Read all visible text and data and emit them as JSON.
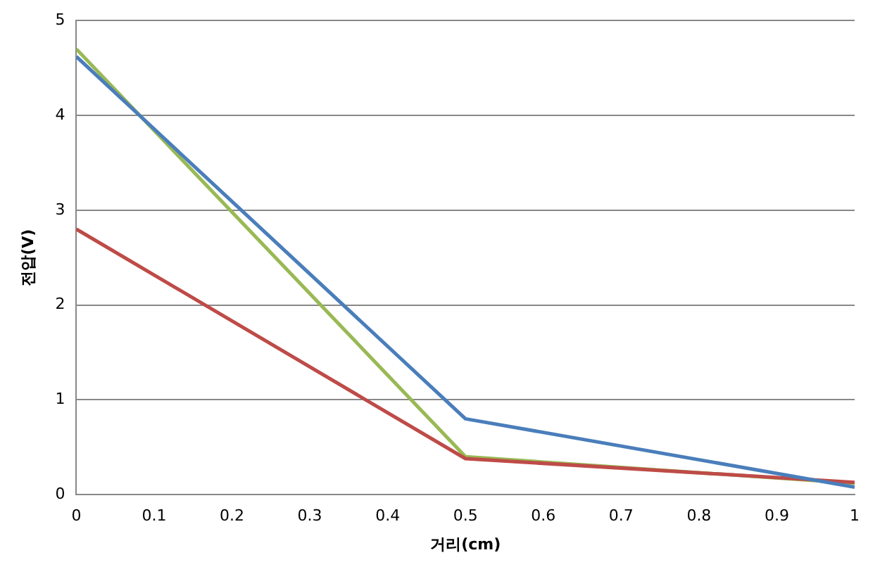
{
  "chart_data": {
    "type": "line",
    "xlabel": "거리(cm)",
    "ylabel": "전압(V)",
    "x": [
      0,
      0.5,
      1
    ],
    "series": [
      {
        "color": "#4a7ebb",
        "values": [
          4.62,
          0.8,
          0.08
        ]
      },
      {
        "color": "#be4b48",
        "values": [
          2.8,
          0.38,
          0.13
        ]
      },
      {
        "color": "#98b954",
        "values": [
          4.7,
          0.4,
          0.12
        ]
      }
    ],
    "xlim": [
      0,
      1
    ],
    "xticks": [
      0,
      0.1,
      0.2,
      0.3,
      0.4,
      0.5,
      0.6,
      0.7,
      0.8,
      0.9,
      1
    ],
    "ylim": [
      0,
      5
    ],
    "yticks": [
      0,
      1,
      2,
      3,
      4,
      5
    ],
    "grid": "y",
    "legend": false,
    "marker": "none",
    "line_style": "solid"
  }
}
